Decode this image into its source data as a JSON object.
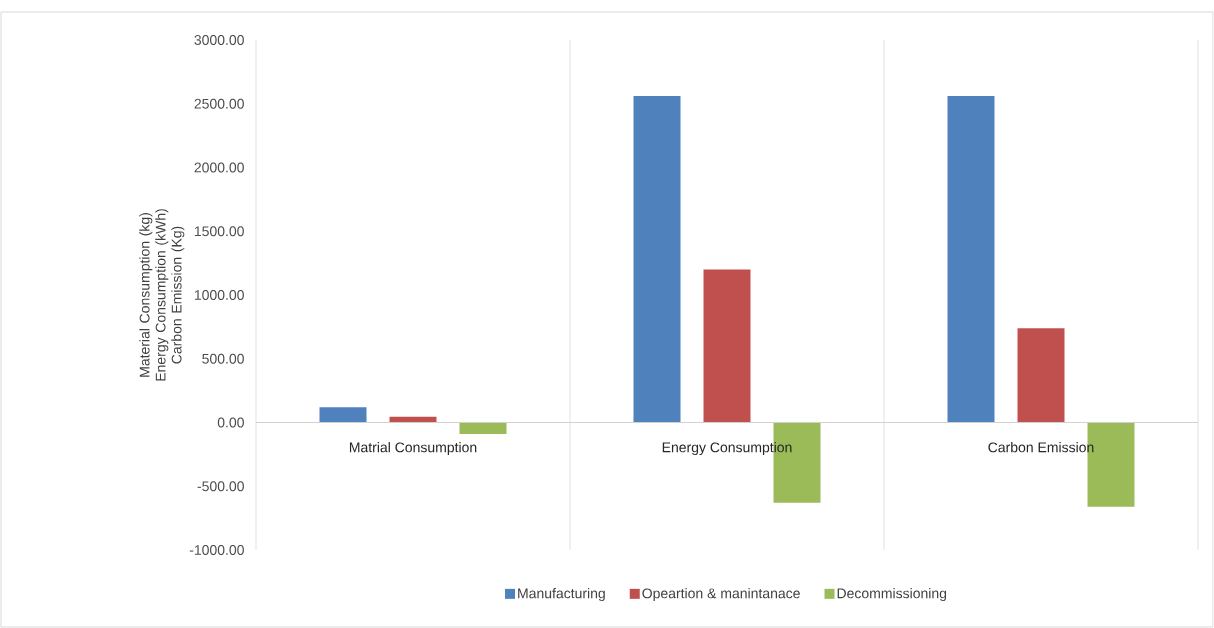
{
  "chart_data": {
    "type": "bar",
    "categories": [
      "Matrial Consumption",
      "Energy Consumption",
      "Carbon Emission"
    ],
    "series": [
      {
        "name": "Manufacturing",
        "color": "#4f81bd",
        "values": [
          120,
          2560,
          2560
        ]
      },
      {
        "name": "Opeartion & manintanace",
        "color": "#c0504d",
        "values": [
          45,
          1200,
          740
        ]
      },
      {
        "name": "Decommissioning",
        "color": "#9bbb59",
        "values": [
          -90,
          -630,
          -660
        ]
      }
    ],
    "ylabel": "Material Consumption (kg) Energy Consumption (kWh) Carbon Emission (Kg)",
    "ylim": [
      -1000,
      3000
    ],
    "yticks": [
      {
        "value": -1000,
        "label": "-1000.00"
      },
      {
        "value": -500,
        "label": "-500.00"
      },
      {
        "value": 0,
        "label": "0.00"
      },
      {
        "value": 500,
        "label": "500.00"
      },
      {
        "value": 1000,
        "label": "1000.00"
      },
      {
        "value": 1500,
        "label": "1500.00"
      },
      {
        "value": 2000,
        "label": "2000.00"
      },
      {
        "value": 2500,
        "label": "2500.00"
      },
      {
        "value": 3000,
        "label": "3000.00"
      }
    ],
    "grid": "x",
    "legend": "bottom"
  }
}
